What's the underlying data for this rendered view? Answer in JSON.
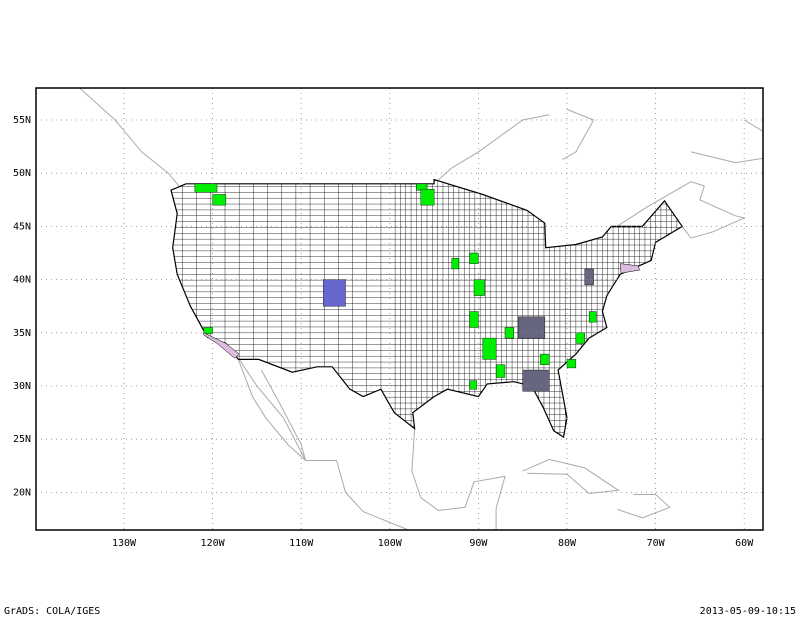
{
  "map": {
    "lat_labels": [
      "55N",
      "50N",
      "45N",
      "40N",
      "35N",
      "30N",
      "25N",
      "20N"
    ],
    "lon_labels": [
      "130W",
      "120W",
      "110W",
      "100W",
      "90W",
      "80W",
      "70W",
      "60W"
    ],
    "footer_left": "GrADS: COLA/IGES",
    "footer_right": "2013-05-09-10:15"
  }
}
